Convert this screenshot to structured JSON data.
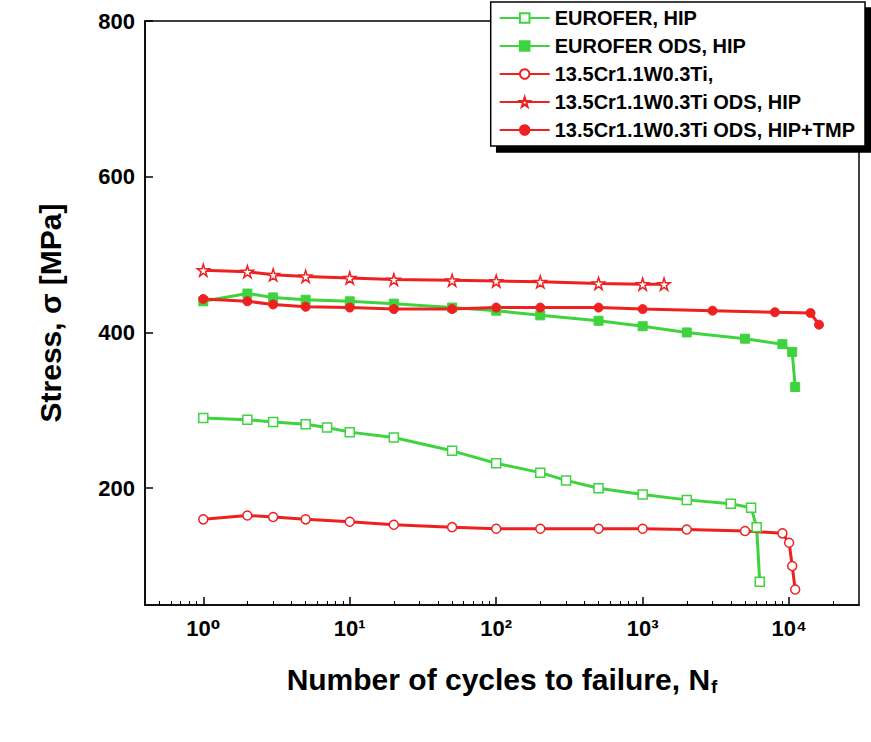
{
  "chart_data": {
    "type": "line",
    "x_label": "Number of cycles to failure, Nf",
    "y_label": "Stress, σ [MPa]",
    "log": "x",
    "grid": false,
    "legend": "top-right",
    "xlim": [
      0.4,
      30000
    ],
    "xticks": [
      {
        "value": 1,
        "label": "10⁰"
      },
      {
        "value": 10,
        "label": "10¹"
      },
      {
        "value": 100,
        "label": "10²"
      },
      {
        "value": 1000,
        "label": "10³"
      },
      {
        "value": 10000,
        "label": "10⁴"
      }
    ],
    "ylim": [
      50,
      800
    ],
    "yticks": [
      200,
      400,
      600,
      800
    ],
    "series": [
      {
        "name": "EUROFER, HIP",
        "color": "#3fd43f",
        "marker": "open_square",
        "x": [
          1,
          2,
          3,
          5,
          7,
          10,
          20,
          50,
          100,
          200,
          300,
          500,
          1000,
          2000,
          4000,
          5500,
          6000,
          6300
        ],
        "values": [
          290,
          288,
          285,
          282,
          278,
          272,
          265,
          248,
          232,
          220,
          210,
          200,
          192,
          185,
          180,
          175,
          150,
          80
        ]
      },
      {
        "name": "EUROFER ODS, HIP",
        "color": "#3fd43f",
        "marker": "filled_square",
        "x": [
          1,
          2,
          3,
          5,
          10,
          20,
          50,
          100,
          200,
          500,
          1000,
          2000,
          5000,
          9000,
          10500,
          11000
        ],
        "values": [
          440,
          450,
          445,
          442,
          440,
          437,
          432,
          428,
          422,
          415,
          408,
          400,
          392,
          385,
          375,
          330
        ]
      },
      {
        "name": "13.5Cr1.1W0.3Ti,",
        "color": "#ee2020",
        "marker": "open_circle",
        "x": [
          1,
          2,
          3,
          5,
          10,
          20,
          50,
          100,
          200,
          500,
          1000,
          2000,
          5000,
          9000,
          10000,
          10500,
          11000
        ],
        "values": [
          160,
          165,
          163,
          160,
          157,
          153,
          150,
          148,
          148,
          148,
          148,
          147,
          145,
          142,
          130,
          100,
          70
        ]
      },
      {
        "name": "13.5Cr1.1W0.3Ti ODS, HIP",
        "color": "#ee2020",
        "marker": "open_star",
        "x": [
          1,
          2,
          3,
          5,
          10,
          20,
          50,
          100,
          200,
          500,
          1000,
          1400
        ],
        "values": [
          480,
          478,
          474,
          472,
          470,
          468,
          467,
          466,
          465,
          463,
          462,
          462
        ]
      },
      {
        "name": "13.5Cr1.1W0.3Ti ODS, HIP+TMP",
        "color": "#ee2020",
        "marker": "filled_circle",
        "x": [
          1,
          2,
          3,
          5,
          10,
          20,
          50,
          100,
          200,
          500,
          1000,
          3000,
          8000,
          14000,
          16000
        ],
        "values": [
          443,
          440,
          436,
          433,
          432,
          430,
          430,
          432,
          432,
          432,
          430,
          428,
          426,
          425,
          410
        ]
      }
    ]
  }
}
